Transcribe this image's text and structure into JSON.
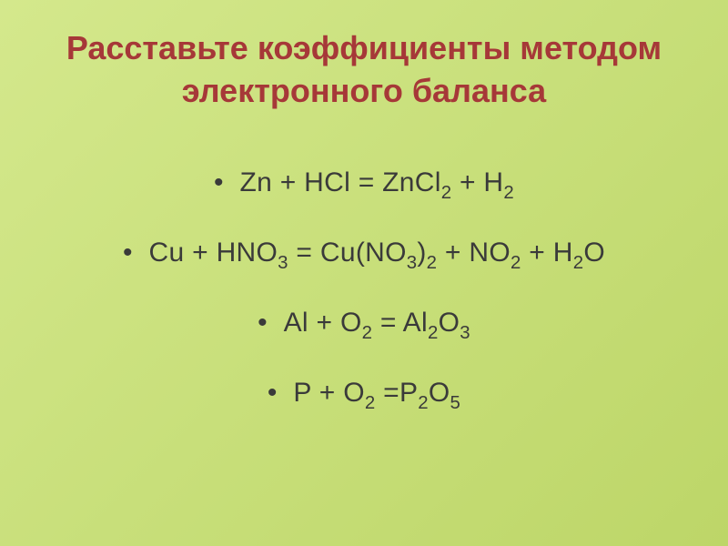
{
  "slide": {
    "title": "Расставьте коэффициенты методом электронного баланса",
    "equations": [
      {
        "bullet": "•",
        "parts": [
          "Zn + HCl   = ZnCl",
          "2",
          "  + H",
          "2"
        ]
      },
      {
        "bullet": "•",
        "parts": [
          "Cu + HNO",
          "3",
          " = Cu(NO",
          "3",
          ")",
          "2",
          " + NO",
          "2",
          " + H",
          "2",
          "O"
        ]
      },
      {
        "bullet": "•",
        "parts": [
          "Al + O",
          "2",
          " = Al",
          "2",
          "O",
          "3"
        ]
      },
      {
        "bullet": "•",
        "parts": [
          "P + O",
          "2",
          " =P",
          "2",
          "O",
          "5"
        ]
      }
    ],
    "colors": {
      "background_start": "#d4e88c",
      "background_end": "#bdd668",
      "title_color": "#a63838",
      "text_color": "#3a3a3a"
    },
    "fonts": {
      "title_size": 36,
      "equation_size": 30,
      "family": "Arial"
    }
  }
}
